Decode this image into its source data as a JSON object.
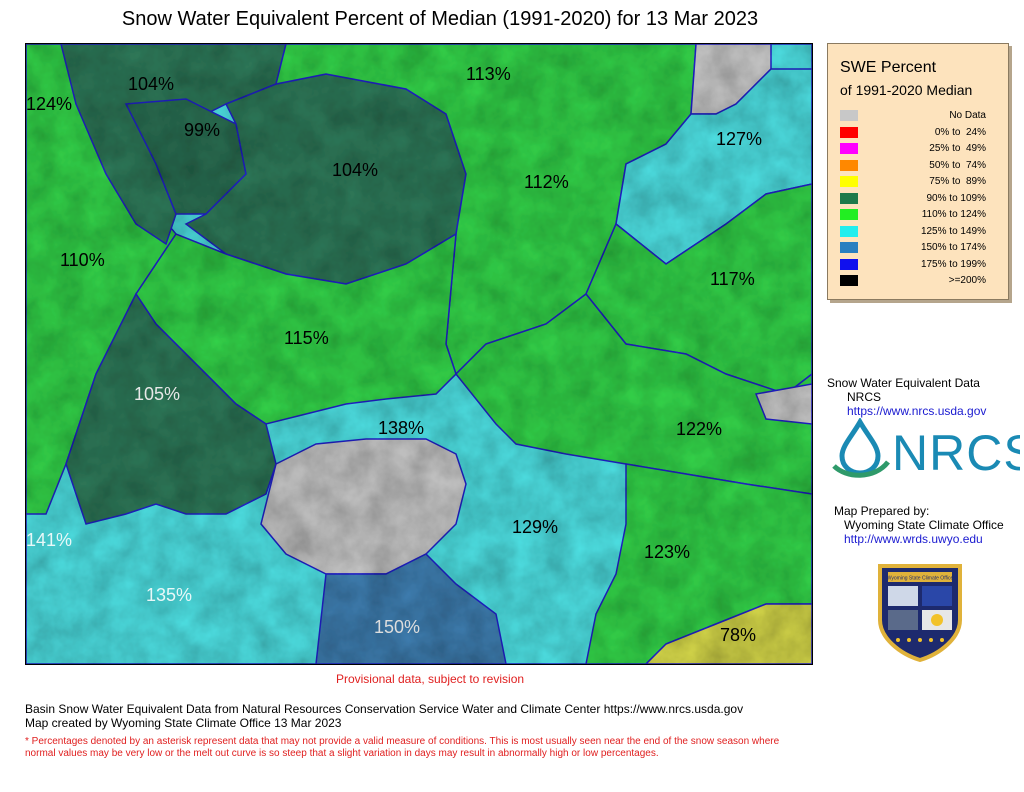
{
  "title": "Snow Water Equivalent Percent of Median (1991-2020)  for 13 Mar 2023",
  "legend": {
    "title1": "SWE Percent",
    "title2": "of 1991-2020 Median",
    "items": [
      {
        "label": "No Data",
        "color": "#c8c8c8"
      },
      {
        "label": "0% to  24%",
        "color": "#ff0000"
      },
      {
        "label": "25% to  49%",
        "color": "#ff00ff"
      },
      {
        "label": "50% to  74%",
        "color": "#ff8800"
      },
      {
        "label": "75% to  89%",
        "color": "#ffff00"
      },
      {
        "label": "90% to 109%",
        "color": "#1e7a4a"
      },
      {
        "label": "110% to 124%",
        "color": "#22ee22"
      },
      {
        "label": "125% to 149%",
        "color": "#22eeee"
      },
      {
        "label": "150% to 174%",
        "color": "#2a7fc0"
      },
      {
        "label": "175% to 199%",
        "color": "#1010ee"
      },
      {
        "label": ">=200%",
        "color": "#000000"
      }
    ]
  },
  "basins": [
    {
      "label": "124%"
    },
    {
      "label": "104%"
    },
    {
      "label": "99%"
    },
    {
      "label": "104%"
    },
    {
      "label": "113%"
    },
    {
      "label": "112%"
    },
    {
      "label": "127%"
    },
    {
      "label": "110%"
    },
    {
      "label": "117%"
    },
    {
      "label": "115%"
    },
    {
      "label": "105%"
    },
    {
      "label": "138%"
    },
    {
      "label": "122%"
    },
    {
      "label": "129%"
    },
    {
      "label": "141%"
    },
    {
      "label": "123%"
    },
    {
      "label": "135%"
    },
    {
      "label": "150%"
    },
    {
      "label": "78%"
    }
  ],
  "source": {
    "line1": "Snow Water Equivalent Data",
    "line2": "NRCS",
    "url": "https://www.nrcs.usda.gov",
    "logo_text": "NRCS"
  },
  "prepared": {
    "line1": "Map Prepared by:",
    "line2": "Wyoming State Climate Office",
    "url": "http://www.wrds.uwyo.edu",
    "badge_text": "Wyoming State Climate Office"
  },
  "provisional": "Provisional data, subject to revision",
  "footer": {
    "line1": "Basin Snow Water Equivalent Data from Natural Resources Conservation Service Water and Climate Center https://www.nrcs.usda.gov",
    "line2": "Map created by Wyoming State Climate Office 13 Mar 2023"
  },
  "note": "* Percentages denoted by an asterisk represent data that may not provide a valid measure of conditions.  This is most usually seen near the end of the snow season where normal values may be very low or the melt out curve is so steep that a slight variation in days may result in abnormally high or low percentages."
}
